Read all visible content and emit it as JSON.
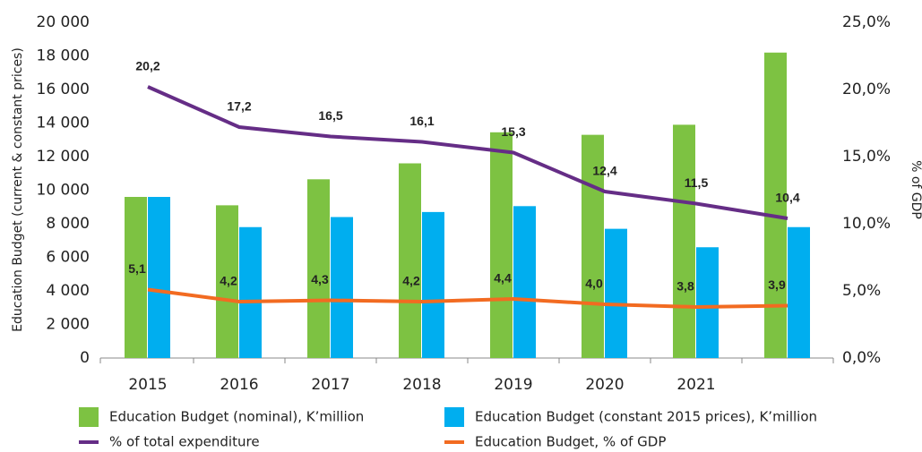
{
  "chart_data": {
    "type": "bar",
    "y_label": "Education Budget (current & constant prices)",
    "y2_label": "% of GDP",
    "categories": [
      "2015",
      "2016",
      "2017",
      "2018",
      "2019",
      "2020",
      "2021",
      null
    ],
    "series": [
      {
        "name": "Education Budget (nominal), K’million",
        "type": "bar",
        "color": "#7dc242",
        "values": [
          9600,
          9100,
          10650,
          11600,
          13450,
          13300,
          13900,
          18200
        ]
      },
      {
        "name": "Education Budget (constant 2015 prices), K’million",
        "type": "bar",
        "color": "#00aeef",
        "values": [
          9600,
          7800,
          8400,
          8700,
          9050,
          7700,
          6600,
          7800
        ]
      },
      {
        "name": "% of total expenditure",
        "type": "line",
        "axis": "y2",
        "color": "#652d86",
        "values": [
          20.2,
          17.2,
          16.5,
          16.1,
          15.3,
          12.4,
          11.5,
          10.4
        ],
        "value_labels": [
          "20,2",
          "17,2",
          "16,5",
          "16,1",
          "15,3",
          "12,4",
          "11,5",
          "10,4"
        ]
      },
      {
        "name": "Education Budget, % of GDP",
        "type": "line",
        "axis": "y2",
        "color": "#f26b21",
        "values": [
          5.1,
          4.2,
          4.3,
          4.2,
          4.4,
          4.0,
          3.8,
          3.9
        ],
        "value_labels": [
          "5,1",
          "4,2",
          "4,3",
          "4,2",
          "4,4",
          "4,0",
          "3,8",
          "3,9"
        ]
      }
    ],
    "ylim": [
      0,
      20000
    ],
    "yticks": [
      {
        "value": 0,
        "label": "0"
      },
      {
        "value": 2000,
        "label": "2 000"
      },
      {
        "value": 4000,
        "label": "4 000"
      },
      {
        "value": 6000,
        "label": "6 000"
      },
      {
        "value": 8000,
        "label": "8 000"
      },
      {
        "value": 10000,
        "label": "10 000"
      },
      {
        "value": 12000,
        "label": "12 000"
      },
      {
        "value": 14000,
        "label": "14 000"
      },
      {
        "value": 16000,
        "label": "16 000"
      },
      {
        "value": 18000,
        "label": "18 000"
      },
      {
        "value": 20000,
        "label": "20 000"
      }
    ],
    "y2lim": [
      0,
      25
    ],
    "y2ticks": [
      {
        "value": 0,
        "label": "0,0%"
      },
      {
        "value": 5,
        "label": "5,0%"
      },
      {
        "value": 10,
        "label": "10,0%"
      },
      {
        "value": 15,
        "label": "15,0%"
      },
      {
        "value": 20,
        "label": "20,0%"
      },
      {
        "value": 25,
        "label": "25,0%"
      }
    ],
    "legend": "bottom",
    "grid": false
  }
}
